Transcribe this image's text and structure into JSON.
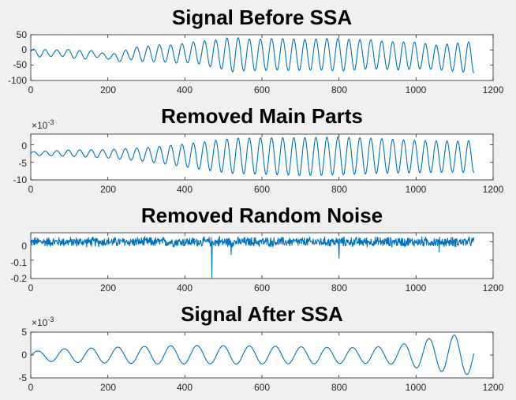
{
  "figure": {
    "background": "#f0f0f0",
    "line_color": "#0072bd"
  },
  "chart_data": [
    {
      "type": "line",
      "title": "Signal Before SSA",
      "exponent": "",
      "xlim": [
        0,
        1200
      ],
      "ylim": [
        -100,
        50
      ],
      "xticks": [
        0,
        200,
        400,
        600,
        800,
        1000,
        1200
      ],
      "xtick_labels": [
        "0",
        "200",
        "400",
        "600",
        "800",
        "1000",
        "1200"
      ],
      "yticks": [
        50,
        0,
        -50,
        -100
      ],
      "ytick_labels": [
        "50",
        "0",
        "-50",
        "-100"
      ],
      "x_range": [
        0,
        1150
      ],
      "kind": "growing-oscillation",
      "anchors": {
        "x": [
          0,
          30,
          60,
          100,
          130,
          160,
          200,
          230,
          260,
          300,
          340,
          370,
          400,
          430,
          470,
          500,
          520,
          560,
          600,
          640,
          680,
          720,
          760,
          800,
          840,
          880,
          920,
          960,
          1000,
          1050,
          1100,
          1150
        ],
        "envelope": [
          8,
          14,
          10,
          12,
          16,
          10,
          8,
          14,
          20,
          26,
          28,
          30,
          32,
          36,
          44,
          50,
          58,
          52,
          52,
          52,
          52,
          50,
          52,
          54,
          50,
          48,
          46,
          46,
          44,
          40,
          46,
          52
        ],
        "offset": [
          -5,
          -12,
          -10,
          -10,
          -18,
          -12,
          -22,
          -24,
          -12,
          -14,
          -10,
          -14,
          -10,
          -8,
          -12,
          -14,
          -14,
          -16,
          -16,
          -14,
          -16,
          -16,
          -14,
          -16,
          -16,
          -14,
          -18,
          -20,
          -18,
          -24,
          -24,
          -24
        ]
      },
      "period": 30
    },
    {
      "type": "line",
      "title": "Removed Main Parts",
      "exponent": "-3",
      "xlim": [
        0,
        1200
      ],
      "ylim": [
        -0.01,
        0.003
      ],
      "xticks": [
        0,
        200,
        400,
        600,
        800,
        1000,
        1200
      ],
      "xtick_labels": [
        "0",
        "200",
        "400",
        "600",
        "800",
        "1000",
        "1200"
      ],
      "yticks": [
        0,
        -0.005,
        -0.01
      ],
      "ytick_labels": [
        "0",
        "-5",
        "-10"
      ],
      "x_range": [
        0,
        1150
      ],
      "kind": "growing-oscillation",
      "anchors": {
        "x": [
          0,
          100,
          200,
          300,
          380,
          450,
          520,
          600,
          700,
          800,
          900,
          1000,
          1100,
          1150
        ],
        "envelope": [
          0.0005,
          0.0009,
          0.0012,
          0.002,
          0.003,
          0.004,
          0.005,
          0.0052,
          0.0054,
          0.0054,
          0.005,
          0.0046,
          0.0044,
          0.0046
        ],
        "offset": [
          -0.0025,
          -0.0024,
          -0.0026,
          -0.0028,
          -0.003,
          -0.0032,
          -0.0032,
          -0.0032,
          -0.0034,
          -0.0032,
          -0.0032,
          -0.0034,
          -0.0034,
          -0.0034
        ]
      },
      "period": 30
    },
    {
      "type": "line",
      "title": "Removed Random Noise",
      "exponent": "",
      "xlim": [
        0,
        1200
      ],
      "ylim": [
        -0.2,
        0.05
      ],
      "xticks": [
        0,
        200,
        400,
        600,
        800,
        1000,
        1200
      ],
      "xtick_labels": [
        "0",
        "200",
        "400",
        "600",
        "800",
        "1000",
        "1200"
      ],
      "yticks": [
        0,
        -0.1,
        -0.2
      ],
      "ytick_labels": [
        "0",
        "-0.1",
        "-0.2"
      ],
      "x_range": [
        0,
        1150
      ],
      "kind": "noise",
      "noise_amplitude": 0.022,
      "spikes": [
        {
          "x": 470,
          "y": -0.195
        },
        {
          "x": 520,
          "y": -0.07
        },
        {
          "x": 490,
          "y": 0.03
        },
        {
          "x": 800,
          "y": -0.09
        },
        {
          "x": 1060,
          "y": -0.055
        }
      ]
    },
    {
      "type": "line",
      "title": "Signal After SSA",
      "exponent": "-3",
      "xlim": [
        0,
        1200
      ],
      "ylim": [
        -0.005,
        0.005
      ],
      "xticks": [
        0,
        200,
        400,
        600,
        800,
        1000,
        1200
      ],
      "xtick_labels": [
        "0",
        "200",
        "400",
        "600",
        "800",
        "1000",
        "1200"
      ],
      "yticks": [
        0.005,
        0,
        -0.005
      ],
      "ytick_labels": [
        "5",
        "0",
        "-5"
      ],
      "x_range": [
        0,
        1150
      ],
      "kind": "growing-oscillation",
      "anchors": {
        "x": [
          0,
          60,
          150,
          250,
          350,
          450,
          550,
          650,
          750,
          850,
          950,
          1000,
          1050,
          1100,
          1150
        ],
        "envelope": [
          0.0008,
          0.0014,
          0.0016,
          0.0018,
          0.002,
          0.002,
          0.002,
          0.0019,
          0.0018,
          0.0017,
          0.002,
          0.003,
          0.0036,
          0.0042,
          0.004
        ],
        "offset": [
          -0.0001,
          -0.0001,
          -0.0001,
          0.0,
          0.0,
          0.0001,
          0.0,
          0.0,
          -0.0001,
          -0.0001,
          0.0,
          0.0002,
          0.0002,
          0.0002,
          -0.0004
        ]
      },
      "period": 70
    }
  ]
}
